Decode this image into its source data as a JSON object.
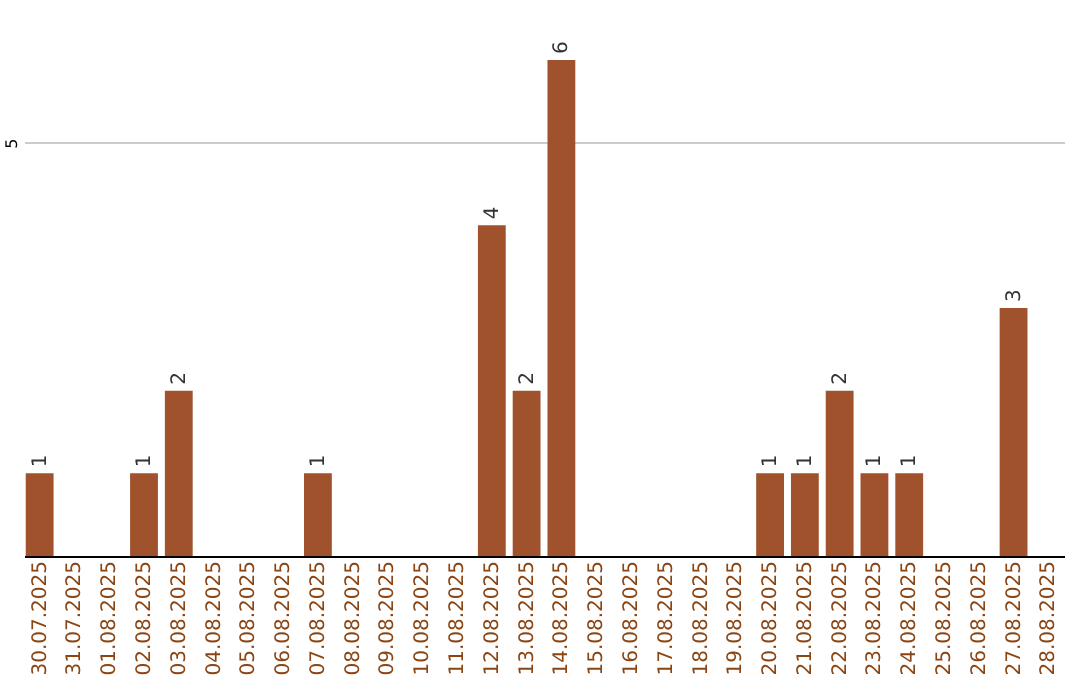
{
  "chart_data": {
    "type": "bar",
    "categories": [
      "30.07.2025",
      "31.07.2025",
      "01.08.2025",
      "02.08.2025",
      "03.08.2025",
      "04.08.2025",
      "05.08.2025",
      "06.08.2025",
      "07.08.2025",
      "08.08.2025",
      "09.08.2025",
      "10.08.2025",
      "11.08.2025",
      "12.08.2025",
      "13.08.2025",
      "14.08.2025",
      "15.08.2025",
      "16.08.2025",
      "17.08.2025",
      "18.08.2025",
      "19.08.2025",
      "20.08.2025",
      "21.08.2025",
      "22.08.2025",
      "23.08.2025",
      "24.08.2025",
      "25.08.2025",
      "26.08.2025",
      "27.08.2025",
      "28.08.2025"
    ],
    "values": [
      1,
      0,
      0,
      1,
      2,
      0,
      0,
      0,
      1,
      0,
      0,
      0,
      0,
      4,
      2,
      6,
      0,
      0,
      0,
      0,
      0,
      1,
      1,
      2,
      1,
      1,
      0,
      0,
      3,
      0
    ],
    "value_labels": [
      "1",
      null,
      null,
      "1",
      "2",
      null,
      null,
      null,
      "1",
      null,
      null,
      null,
      null,
      "4",
      "2",
      "6",
      null,
      null,
      null,
      null,
      null,
      "1",
      "1",
      "2",
      "1",
      "1",
      null,
      null,
      "3",
      null
    ],
    "color": "#a0522d",
    "ylim": [
      0,
      6
    ],
    "yticks": [
      5
    ],
    "grid": "y"
  }
}
